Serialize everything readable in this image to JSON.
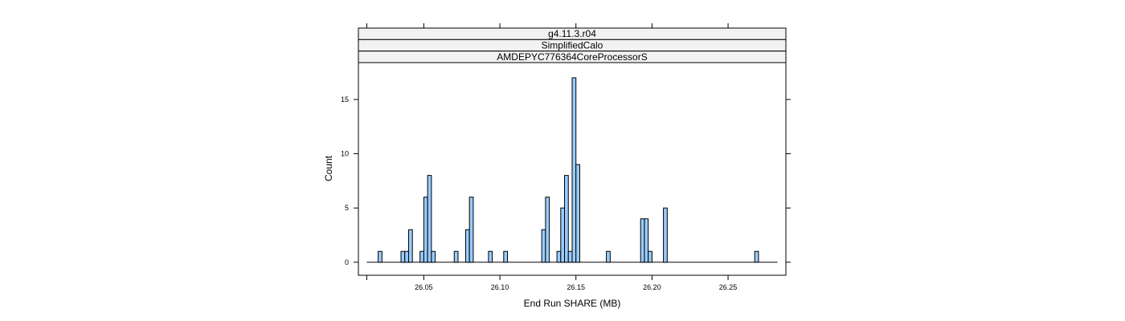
{
  "chart_data": {
    "type": "bar",
    "strips": [
      "g4.11.3.r04",
      "SimplifiedCalo",
      "AMDEPYC776364CoreProcessorS"
    ],
    "xlabel": "End Run SHARE (MB)",
    "ylabel": "Count",
    "xlim": [
      26.007,
      26.288
    ],
    "ylim": [
      -1.2,
      18.4
    ],
    "x_ticks": [
      26.05,
      26.1,
      26.15,
      26.2,
      26.25
    ],
    "x_tick_labels": [
      "26.05",
      "26.10",
      "26.15",
      "26.20",
      "26.25"
    ],
    "y_ticks": [
      0,
      5,
      10,
      15
    ],
    "y_tick_labels": [
      "0",
      "5",
      "10",
      "15"
    ],
    "bin_width": 0.0025,
    "baseline_range": [
      26.0125,
      26.2825
    ],
    "bins": [
      {
        "x": 26.02,
        "count": 1
      },
      {
        "x": 26.035,
        "count": 1
      },
      {
        "x": 26.0375,
        "count": 1
      },
      {
        "x": 26.04,
        "count": 3
      },
      {
        "x": 26.0475,
        "count": 1
      },
      {
        "x": 26.05,
        "count": 6
      },
      {
        "x": 26.0525,
        "count": 8
      },
      {
        "x": 26.055,
        "count": 1
      },
      {
        "x": 26.07,
        "count": 1
      },
      {
        "x": 26.0775,
        "count": 3
      },
      {
        "x": 26.08,
        "count": 6
      },
      {
        "x": 26.0925,
        "count": 1
      },
      {
        "x": 26.1025,
        "count": 1
      },
      {
        "x": 26.1275,
        "count": 3
      },
      {
        "x": 26.13,
        "count": 6
      },
      {
        "x": 26.1375,
        "count": 1
      },
      {
        "x": 26.14,
        "count": 5
      },
      {
        "x": 26.1425,
        "count": 8
      },
      {
        "x": 26.145,
        "count": 1
      },
      {
        "x": 26.1475,
        "count": 17
      },
      {
        "x": 26.15,
        "count": 9
      },
      {
        "x": 26.17,
        "count": 1
      },
      {
        "x": 26.1925,
        "count": 4
      },
      {
        "x": 26.195,
        "count": 4
      },
      {
        "x": 26.1975,
        "count": 1
      },
      {
        "x": 26.2075,
        "count": 5
      },
      {
        "x": 26.2675,
        "count": 1
      }
    ],
    "colors": {
      "bar_fill": "#99ccff",
      "bar_stroke": "#000000",
      "strip_fill": "#f2f2f2",
      "frame": "#000000"
    },
    "grid": false,
    "legend": "none"
  }
}
